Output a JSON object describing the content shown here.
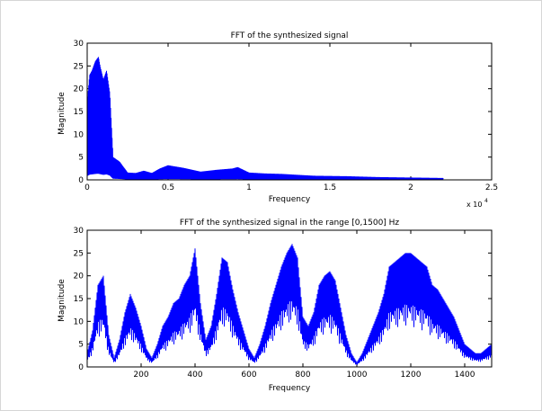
{
  "window": {
    "background": "#ffffff",
    "line_color": "#0000ff"
  },
  "chart_data": [
    {
      "type": "line",
      "title": "FFT of the synthesized signal",
      "xlabel": "Frequency",
      "ylabel": "Magnitude",
      "xlim": [
        0,
        25000
      ],
      "ylim": [
        0,
        30
      ],
      "x_ticks": [
        0,
        5000,
        10000,
        15000,
        20000,
        25000
      ],
      "x_tick_labels": [
        "0",
        "0.5",
        "1",
        "1.5",
        "2",
        "2.5"
      ],
      "x_exponent_label": "x 10",
      "x_exponent_power": "4",
      "y_ticks": [
        0,
        5,
        10,
        15,
        20,
        25,
        30
      ],
      "y_tick_labels": [
        "0",
        "5",
        "10",
        "15",
        "20",
        "25",
        "30"
      ],
      "grid": false,
      "envelope": {
        "x": [
          0,
          150,
          300,
          500,
          700,
          800,
          1000,
          1200,
          1400,
          1600,
          2000,
          2500,
          3000,
          3500,
          4000,
          4500,
          5000,
          6000,
          7000,
          8000,
          9000,
          9300,
          10000,
          11000,
          12000,
          14000,
          16000,
          18000,
          20000,
          22000
        ],
        "y": [
          17,
          23,
          24,
          26,
          27,
          25,
          22,
          24,
          19,
          5,
          4,
          1.6,
          1.5,
          2.0,
          1.5,
          2.5,
          3.2,
          2.6,
          1.8,
          2.2,
          2.5,
          2.8,
          1.6,
          1.4,
          1.3,
          0.9,
          0.8,
          0.6,
          0.5,
          0.4
        ]
      }
    },
    {
      "type": "line",
      "title": "FFT of the synthesized signal in the range [0,1500] Hz",
      "xlabel": "Frequency",
      "ylabel": "Magnitude",
      "xlim": [
        0,
        1500
      ],
      "ylim": [
        0,
        30
      ],
      "x_ticks": [
        200,
        400,
        600,
        800,
        1000,
        1200,
        1400
      ],
      "x_tick_labels": [
        "200",
        "400",
        "600",
        "800",
        "1000",
        "1200",
        "1400"
      ],
      "y_ticks": [
        0,
        5,
        10,
        15,
        20,
        25,
        30
      ],
      "y_tick_labels": [
        "0",
        "5",
        "10",
        "15",
        "20",
        "25",
        "30"
      ],
      "grid": false,
      "envelope": {
        "x": [
          0,
          20,
          40,
          60,
          80,
          100,
          120,
          140,
          160,
          180,
          200,
          220,
          240,
          260,
          280,
          300,
          320,
          340,
          360,
          380,
          400,
          420,
          440,
          460,
          480,
          500,
          520,
          540,
          560,
          580,
          600,
          620,
          640,
          660,
          680,
          700,
          720,
          740,
          760,
          780,
          800,
          820,
          840,
          860,
          880,
          900,
          920,
          940,
          960,
          980,
          1000,
          1020,
          1040,
          1060,
          1080,
          1100,
          1120,
          1140,
          1160,
          1180,
          1200,
          1220,
          1240,
          1260,
          1280,
          1300,
          1320,
          1340,
          1360,
          1380,
          1400,
          1420,
          1440,
          1460,
          1480,
          1500
        ],
        "y": [
          3,
          8,
          18,
          20,
          7,
          2,
          6,
          12,
          16,
          13,
          9,
          4,
          2,
          5,
          9,
          11,
          14,
          15,
          18,
          20,
          26,
          14,
          6,
          9,
          16,
          24,
          23,
          17,
          12,
          8,
          4,
          2,
          5,
          9,
          14,
          18,
          22,
          25,
          27,
          24,
          11,
          9,
          12,
          18,
          20,
          21,
          19,
          13,
          7,
          3,
          1,
          3,
          6,
          9,
          12,
          16,
          22,
          23,
          24,
          25,
          25,
          24,
          23,
          22,
          18,
          17,
          15,
          13,
          11,
          8,
          5,
          4,
          3,
          3,
          4,
          5
        ]
      }
    }
  ]
}
